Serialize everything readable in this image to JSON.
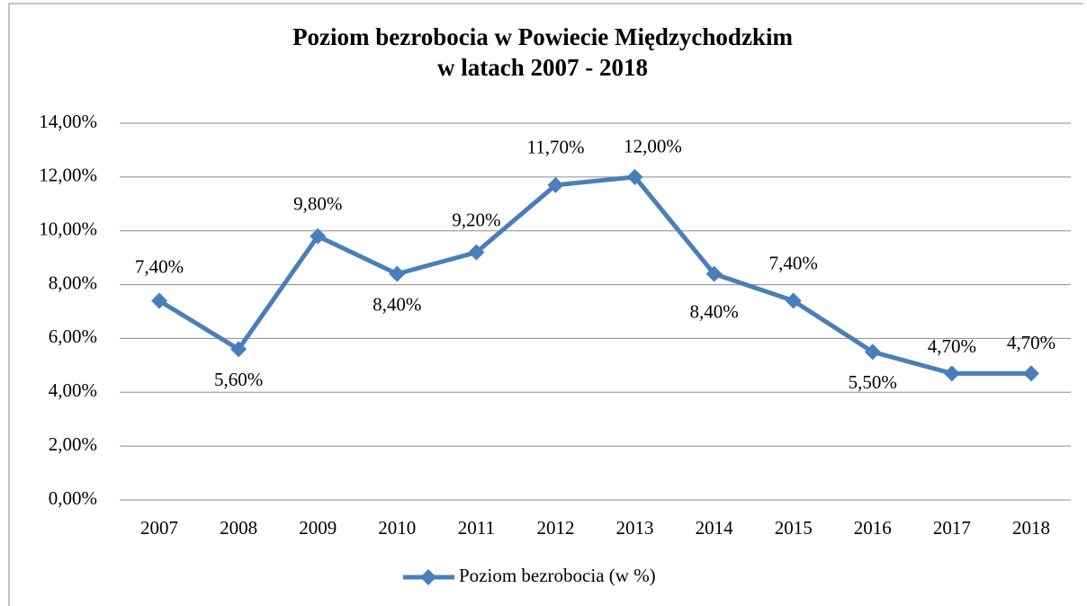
{
  "chart_data": {
    "type": "line",
    "title": [
      "Poziom bezrobocia w Powiecie Międzychodzkim",
      "w latach 2007 - 2018"
    ],
    "categories": [
      "2007",
      "2008",
      "2009",
      "2010",
      "2011",
      "2012",
      "2013",
      "2014",
      "2015",
      "2016",
      "2017",
      "2018"
    ],
    "series": [
      {
        "name": "Poziom bezrobocia (w %)",
        "color": "#4a7ebb",
        "values": [
          7.4,
          5.6,
          9.8,
          8.4,
          9.2,
          11.7,
          12.0,
          8.4,
          7.4,
          5.5,
          4.7,
          4.7
        ],
        "value_labels": [
          "7,40%",
          "5,60%",
          "9,80%",
          "8,40%",
          "9,20%",
          "11,70%",
          "12,00%",
          "8,40%",
          "7,40%",
          "5,50%",
          "4,70%",
          "4,70%"
        ]
      }
    ],
    "ylim": [
      0,
      14
    ],
    "yticks": [
      {
        "value": 0,
        "label": "0,00%"
      },
      {
        "value": 2,
        "label": "2,00%"
      },
      {
        "value": 4,
        "label": "4,00%"
      },
      {
        "value": 6,
        "label": "6,00%"
      },
      {
        "value": 8,
        "label": "8,00%"
      },
      {
        "value": 10,
        "label": "10,00%"
      },
      {
        "value": 12,
        "label": "12,00%"
      },
      {
        "value": 14,
        "label": "14,00%"
      }
    ],
    "grid": true,
    "legend": "bottom"
  }
}
